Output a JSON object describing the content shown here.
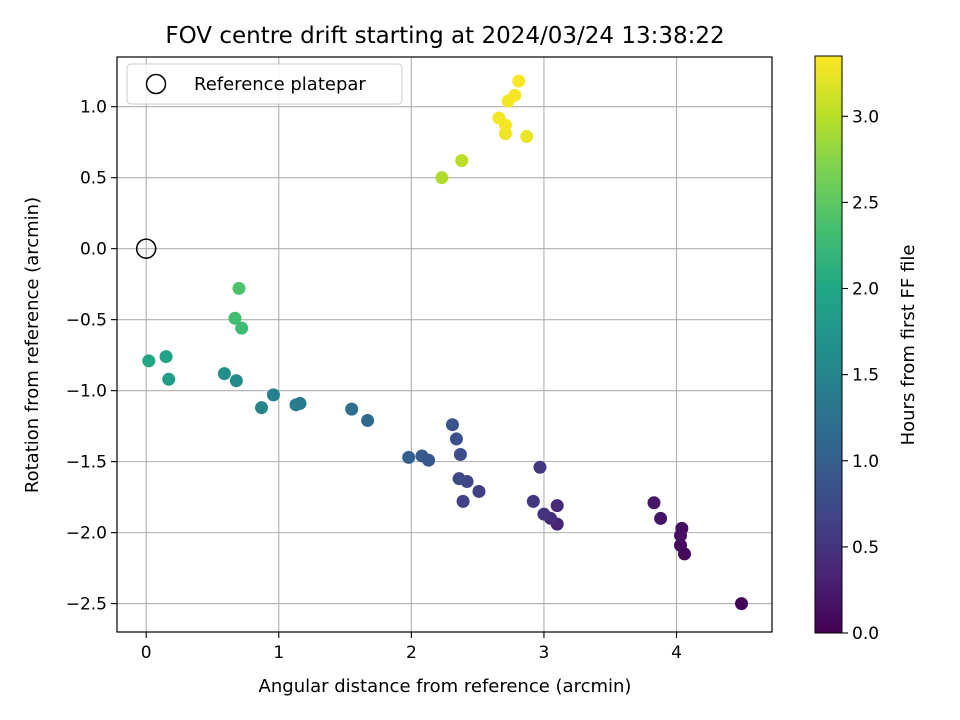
{
  "chart_data": {
    "type": "scatter",
    "title": "FOV centre drift starting at 2024/03/24 13:38:22",
    "xlabel": "Angular distance from reference (arcmin)",
    "ylabel": "Rotation from reference (arcmin)",
    "xlim": [
      -0.22,
      4.72
    ],
    "ylim": [
      -2.7,
      1.35
    ],
    "xticks": [
      0,
      1,
      2,
      3,
      4
    ],
    "xtick_labels": [
      "0",
      "1",
      "2",
      "3",
      "4"
    ],
    "yticks": [
      -2.5,
      -2.0,
      -1.5,
      -1.0,
      -0.5,
      0.0,
      0.5,
      1.0
    ],
    "ytick_labels": [
      "−2.5",
      "−2.0",
      "−1.5",
      "−1.0",
      "−0.5",
      "0.0",
      "0.5",
      "1.0"
    ],
    "grid": true,
    "legend": {
      "position": "upper-left",
      "label": "Reference platepar"
    },
    "reference_point": {
      "x": 0,
      "y": 0
    },
    "colorbar": {
      "label": "Hours from first FF file",
      "colormap": "viridis",
      "range": [
        0,
        3.35
      ],
      "ticks": [
        0,
        0.5,
        1.0,
        1.5,
        2.0,
        2.5,
        3.0
      ],
      "tick_labels": [
        "0.0",
        "0.5",
        "1.0",
        "1.5",
        "2.0",
        "2.5",
        "3.0"
      ]
    },
    "points": [
      {
        "x": 4.49,
        "y": -2.5,
        "c": 0.02
      },
      {
        "x": 4.06,
        "y": -2.15,
        "c": 0.07
      },
      {
        "x": 4.03,
        "y": -2.09,
        "c": 0.09
      },
      {
        "x": 4.04,
        "y": -1.97,
        "c": 0.12
      },
      {
        "x": 4.03,
        "y": -2.02,
        "c": 0.15
      },
      {
        "x": 3.88,
        "y": -1.9,
        "c": 0.18
      },
      {
        "x": 3.83,
        "y": -1.79,
        "c": 0.22
      },
      {
        "x": 3.1,
        "y": -1.94,
        "c": 0.35
      },
      {
        "x": 3.1,
        "y": -1.81,
        "c": 0.4
      },
      {
        "x": 3.05,
        "y": -1.9,
        "c": 0.44
      },
      {
        "x": 3.0,
        "y": -1.87,
        "c": 0.48
      },
      {
        "x": 2.92,
        "y": -1.78,
        "c": 0.52
      },
      {
        "x": 2.97,
        "y": -1.54,
        "c": 0.55
      },
      {
        "x": 2.51,
        "y": -1.71,
        "c": 0.62
      },
      {
        "x": 2.39,
        "y": -1.78,
        "c": 0.66
      },
      {
        "x": 2.42,
        "y": -1.64,
        "c": 0.7
      },
      {
        "x": 2.36,
        "y": -1.62,
        "c": 0.74
      },
      {
        "x": 2.37,
        "y": -1.45,
        "c": 0.78
      },
      {
        "x": 2.34,
        "y": -1.34,
        "c": 0.82
      },
      {
        "x": 2.31,
        "y": -1.24,
        "c": 0.86
      },
      {
        "x": 2.13,
        "y": -1.49,
        "c": 0.92
      },
      {
        "x": 2.08,
        "y": -1.46,
        "c": 0.96
      },
      {
        "x": 1.98,
        "y": -1.47,
        "c": 1.0
      },
      {
        "x": 1.67,
        "y": -1.21,
        "c": 1.15
      },
      {
        "x": 1.55,
        "y": -1.13,
        "c": 1.2
      },
      {
        "x": 1.16,
        "y": -1.09,
        "c": 1.35
      },
      {
        "x": 1.13,
        "y": -1.1,
        "c": 1.38
      },
      {
        "x": 0.96,
        "y": -1.03,
        "c": 1.45
      },
      {
        "x": 0.87,
        "y": -1.12,
        "c": 1.5
      },
      {
        "x": 0.68,
        "y": -0.93,
        "c": 1.6
      },
      {
        "x": 0.59,
        "y": -0.88,
        "c": 1.65
      },
      {
        "x": 0.17,
        "y": -0.92,
        "c": 1.85
      },
      {
        "x": 0.15,
        "y": -0.76,
        "c": 1.92
      },
      {
        "x": 0.02,
        "y": -0.79,
        "c": 1.98
      },
      {
        "x": 0.72,
        "y": -0.56,
        "c": 2.28
      },
      {
        "x": 0.67,
        "y": -0.49,
        "c": 2.32
      },
      {
        "x": 0.7,
        "y": -0.28,
        "c": 2.4
      },
      {
        "x": 2.23,
        "y": 0.5,
        "c": 2.95
      },
      {
        "x": 2.38,
        "y": 0.62,
        "c": 3.0
      },
      {
        "x": 2.87,
        "y": 0.79,
        "c": 3.25
      },
      {
        "x": 2.71,
        "y": 0.81,
        "c": 3.28
      },
      {
        "x": 2.71,
        "y": 0.87,
        "c": 3.29
      },
      {
        "x": 2.66,
        "y": 0.92,
        "c": 3.3
      },
      {
        "x": 2.73,
        "y": 1.04,
        "c": 3.31
      },
      {
        "x": 2.78,
        "y": 1.08,
        "c": 3.32
      },
      {
        "x": 2.81,
        "y": 1.18,
        "c": 3.33
      }
    ]
  }
}
